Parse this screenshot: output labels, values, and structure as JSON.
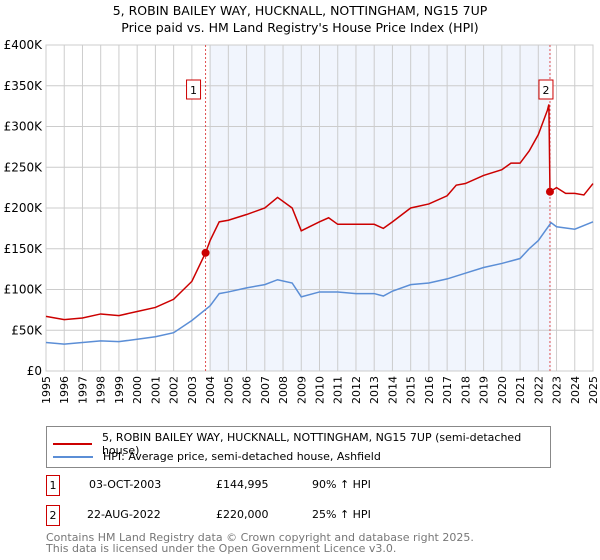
{
  "title": "5, ROBIN BAILEY WAY, HUCKNALL, NOTTINGHAM, NG15 7UP",
  "subtitle": "Price paid vs. HM Land Registry's House Price Index (HPI)",
  "chart_data": {
    "type": "line",
    "title": "5, ROBIN BAILEY WAY, HUCKNALL, NOTTINGHAM, NG15 7UP",
    "subtitle": "Price paid vs. HM Land Registry's House Price Index (HPI)",
    "xlim": [
      1995,
      2025
    ],
    "ylim": [
      0,
      400000
    ],
    "x_ticks": [
      "1995",
      "1996",
      "1997",
      "1998",
      "1999",
      "2000",
      "2001",
      "2002",
      "2003",
      "2004",
      "2005",
      "2006",
      "2007",
      "2008",
      "2009",
      "2010",
      "2011",
      "2012",
      "2013",
      "2014",
      "2015",
      "2016",
      "2017",
      "2018",
      "2019",
      "2020",
      "2021",
      "2022",
      "2023",
      "2024",
      "2025"
    ],
    "y_ticks": [
      {
        "v": 0,
        "label": "£0"
      },
      {
        "v": 50000,
        "label": "£50K"
      },
      {
        "v": 100000,
        "label": "£100K"
      },
      {
        "v": 150000,
        "label": "£150K"
      },
      {
        "v": 200000,
        "label": "£200K"
      },
      {
        "v": 250000,
        "label": "£250K"
      },
      {
        "v": 300000,
        "label": "£300K"
      },
      {
        "v": 350000,
        "label": "£350K"
      },
      {
        "v": 400000,
        "label": "£400K"
      }
    ],
    "grid": true,
    "shaded_range": [
      2004.0,
      2022.7
    ],
    "series": [
      {
        "name": "5, ROBIN BAILEY WAY, HUCKNALL, NOTTINGHAM, NG15 7UP (semi-detached house)",
        "color": "#cc0000",
        "x": [
          1995,
          1996,
          1997,
          1998,
          1999,
          2000,
          2001,
          2002,
          2003,
          2003.75,
          2004,
          2004.5,
          2005,
          2006,
          2007,
          2007.7,
          2008.5,
          2009,
          2010,
          2010.5,
          2011,
          2012,
          2013,
          2013.5,
          2014,
          2015,
          2016,
          2017,
          2017.5,
          2018,
          2019,
          2020,
          2020.5,
          2021,
          2021.5,
          2022,
          2022.5,
          2022.58,
          2022.64,
          2023,
          2023.5,
          2024,
          2024.5,
          2025
        ],
        "y": [
          67000,
          63000,
          65000,
          70000,
          68000,
          73000,
          78000,
          88000,
          110000,
          144995,
          160000,
          183000,
          185000,
          192000,
          200000,
          213000,
          200000,
          172000,
          183000,
          188000,
          180000,
          180000,
          180000,
          175000,
          183000,
          200000,
          205000,
          215000,
          228000,
          230000,
          240000,
          247000,
          255000,
          255000,
          270000,
          290000,
          320000,
          327000,
          220000,
          225000,
          218000,
          218000,
          216000,
          230000
        ]
      },
      {
        "name": "HPI: Average price, semi-detached house, Ashfield",
        "color": "#5b8ed6",
        "x": [
          1995,
          1996,
          1997,
          1998,
          1999,
          2000,
          2001,
          2002,
          2003,
          2004,
          2004.5,
          2005,
          2006,
          2007,
          2007.7,
          2008.5,
          2009,
          2010,
          2011,
          2012,
          2013,
          2013.5,
          2014,
          2015,
          2016,
          2017,
          2018,
          2019,
          2020,
          2020.5,
          2021,
          2021.5,
          2022,
          2022.7,
          2023,
          2024,
          2025
        ],
        "y": [
          35000,
          33000,
          35000,
          37000,
          36000,
          39000,
          42000,
          47000,
          62000,
          80000,
          95000,
          97000,
          102000,
          106000,
          112000,
          108000,
          91000,
          97000,
          97000,
          95000,
          95000,
          92000,
          98000,
          106000,
          108000,
          113000,
          120000,
          127000,
          132000,
          135000,
          138000,
          150000,
          160000,
          182000,
          177000,
          174000,
          183000
        ]
      }
    ],
    "annotations": [
      {
        "label": "1",
        "x": 2003.75,
        "y": 144995
      },
      {
        "label": "2",
        "x": 2022.64,
        "y": 220000
      }
    ]
  },
  "legend": [
    "5, ROBIN BAILEY WAY, HUCKNALL, NOTTINGHAM, NG15 7UP (semi-detached house)",
    "HPI: Average price, semi-detached house, Ashfield"
  ],
  "transactions": [
    {
      "num": "1",
      "date": "03-OCT-2003",
      "price": "£144,995",
      "hpi": "90% ↑ HPI"
    },
    {
      "num": "2",
      "date": "22-AUG-2022",
      "price": "£220,000",
      "hpi": "25% ↑ HPI"
    }
  ],
  "footer": [
    "Contains HM Land Registry data © Crown copyright and database right 2025.",
    "This data is licensed under the Open Government Licence v3.0."
  ]
}
